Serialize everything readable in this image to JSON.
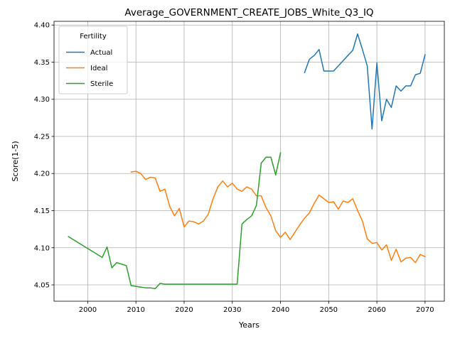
{
  "chart_data": {
    "type": "line",
    "title": "Average_GOVERNMENT_CREATE_JOBS_White_Q3_IQ",
    "xlabel": "Years",
    "ylabel": "Score(1-5)",
    "xlim": [
      1993,
      2074
    ],
    "ylim": [
      4.028,
      4.405
    ],
    "xticks": [
      2000,
      2010,
      2020,
      2030,
      2040,
      2050,
      2060,
      2070
    ],
    "yticks": [
      4.05,
      4.1,
      4.15,
      4.2,
      4.25,
      4.3,
      4.35,
      4.4
    ],
    "ytick_labels": [
      "4.05",
      "4.10",
      "4.15",
      "4.20",
      "4.25",
      "4.30",
      "4.35",
      "4.40"
    ],
    "grid": true,
    "legend": {
      "title": "Fertility",
      "placement": "top-left"
    },
    "series": [
      {
        "name": "Actual",
        "color": "#1f77b4",
        "x": [
          2045,
          2046,
          2047,
          2048,
          2049,
          2050,
          2051,
          2052,
          2053,
          2054,
          2055,
          2056,
          2057,
          2058,
          2059,
          2060,
          2061,
          2062,
          2063,
          2064,
          2065,
          2066,
          2067,
          2068,
          2069,
          2070
        ],
        "y": [
          4.336,
          4.354,
          4.359,
          4.367,
          4.338,
          4.338,
          4.338,
          4.345,
          4.352,
          4.359,
          4.366,
          4.388,
          4.367,
          4.345,
          4.26,
          4.349,
          4.271,
          4.3,
          4.289,
          4.318,
          4.311,
          4.318,
          4.318,
          4.333,
          4.335,
          4.36
        ]
      },
      {
        "name": "Ideal",
        "color": "#ff7f0e",
        "x": [
          2009,
          2010,
          2011,
          2012,
          2013,
          2014,
          2015,
          2016,
          2017,
          2018,
          2019,
          2020,
          2021,
          2022,
          2023,
          2024,
          2025,
          2026,
          2027,
          2028,
          2029,
          2030,
          2031,
          2032,
          2033,
          2034,
          2035,
          2036,
          2037,
          2038,
          2039,
          2040,
          2041,
          2042,
          2043,
          2044,
          2045,
          2046,
          2047,
          2048,
          2049,
          2050,
          2051,
          2052,
          2053,
          2054,
          2055,
          2056,
          2057,
          2058,
          2059,
          2060,
          2061,
          2062,
          2063,
          2064,
          2065,
          2066,
          2067,
          2068,
          2069,
          2070
        ],
        "y": [
          4.202,
          4.203,
          4.2,
          4.192,
          4.195,
          4.194,
          4.176,
          4.179,
          4.156,
          4.143,
          4.153,
          4.128,
          4.136,
          4.135,
          4.132,
          4.136,
          4.145,
          4.166,
          4.182,
          4.19,
          4.182,
          4.187,
          4.179,
          4.176,
          4.182,
          4.179,
          4.17,
          4.17,
          4.154,
          4.143,
          4.123,
          4.114,
          4.121,
          4.111,
          4.121,
          4.131,
          4.14,
          4.147,
          4.16,
          4.171,
          4.166,
          4.161,
          4.162,
          4.152,
          4.163,
          4.161,
          4.166,
          4.15,
          4.136,
          4.112,
          4.106,
          4.107,
          4.097,
          4.104,
          4.083,
          4.098,
          4.081,
          4.086,
          4.087,
          4.08,
          4.091,
          4.088
        ]
      },
      {
        "name": "Sterile",
        "color": "#2ca02c",
        "x": [
          1996,
          2003,
          2004,
          2005,
          2006,
          2007,
          2008,
          2009,
          2010,
          2011,
          2012,
          2013,
          2014,
          2015,
          2016,
          2017,
          2018,
          2019,
          2020,
          2021,
          2022,
          2023,
          2024,
          2025,
          2026,
          2027,
          2028,
          2029,
          2030,
          2031,
          2032,
          2033,
          2034,
          2035,
          2036,
          2037,
          2038,
          2039,
          2040
        ],
        "y": [
          4.115,
          4.087,
          4.101,
          4.073,
          4.08,
          4.078,
          4.076,
          4.049,
          4.048,
          4.047,
          4.046,
          4.046,
          4.045,
          4.052,
          4.051,
          4.051,
          4.051,
          4.051,
          4.051,
          4.051,
          4.051,
          4.051,
          4.051,
          4.051,
          4.051,
          4.051,
          4.051,
          4.051,
          4.051,
          4.051,
          4.132,
          4.138,
          4.143,
          4.157,
          4.214,
          4.222,
          4.222,
          4.198,
          4.228
        ]
      }
    ]
  }
}
